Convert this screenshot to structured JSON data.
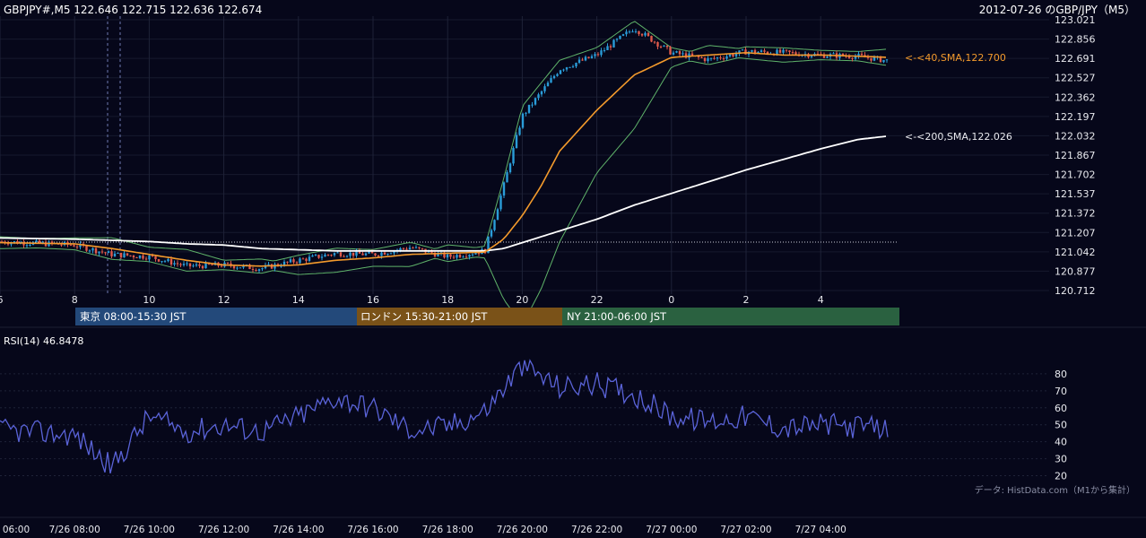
{
  "header": {
    "symbol_line": "GBPJPY#,M5 122.646 122.715 122.636 122.674",
    "right_title": "2012-07-26 のGBP/JPY（M5）"
  },
  "main_chart": {
    "type": "candlestick",
    "ymin": 120.712,
    "ymax": 123.021,
    "y_ticks": [
      "123.021",
      "122.856",
      "122.691",
      "122.527",
      "122.362",
      "122.197",
      "122.032",
      "121.867",
      "121.702",
      "121.537",
      "121.372",
      "121.207",
      "121.042",
      "120.877",
      "120.712"
    ],
    "x_ticks": [
      "6",
      "8",
      "10",
      "12",
      "14",
      "16",
      "18",
      "20",
      "22",
      "0",
      "2",
      "4"
    ],
    "sma40_label": "<-<40,SMA,122.700",
    "sma200_label": "<-<200,SMA,122.026",
    "colors": {
      "up": "#2a9cd8",
      "down": "#e05a4c",
      "sma40": "#f39a2c",
      "sma200": "#ffffff",
      "bollinger": "#5fb36a"
    }
  },
  "sessions": [
    {
      "label": "東京 08:00-15:30 JST",
      "color": "#23497a"
    },
    {
      "label": "ロンドン 15:30-21:00 JST",
      "color": "#7a5218"
    },
    {
      "label": "NY 21:00-06:00 JST",
      "color": "#2a6140"
    }
  ],
  "rsi_panel": {
    "label": "RSI(14) 46.8478",
    "y_ticks": [
      "80",
      "70",
      "60",
      "50",
      "40",
      "30",
      "20"
    ],
    "line_color": "#5a63d8",
    "source_note": "データ: HistData.com（M1から集計）"
  },
  "time_axis": [
    "06:00",
    "7/26 08:00",
    "7/26 10:00",
    "7/26 12:00",
    "7/26 14:00",
    "7/26 16:00",
    "7/26 18:00",
    "7/26 20:00",
    "7/26 22:00",
    "7/27 00:00",
    "7/27 02:00",
    "7/27 04:00"
  ],
  "chart_data": [
    {
      "type": "line",
      "title": "2012-07-26 のGBP/JPY（M5）",
      "x": [
        "06:00",
        "08:00",
        "09:00",
        "10:00",
        "11:00",
        "12:00",
        "13:00",
        "14:00",
        "15:00",
        "16:00",
        "17:00",
        "18:00",
        "19:00",
        "19:30",
        "20:00",
        "20:30",
        "21:00",
        "22:00",
        "23:00",
        "00:00",
        "01:00",
        "02:00",
        "03:00",
        "04:00",
        "05:00",
        "05:50"
      ],
      "series": [
        {
          "name": "price",
          "values": [
            121.13,
            121.1,
            121.02,
            121.0,
            120.92,
            120.93,
            120.9,
            120.97,
            121.03,
            121.02,
            121.08,
            121.0,
            121.05,
            121.6,
            122.2,
            122.4,
            122.6,
            122.72,
            122.95,
            122.74,
            122.68,
            122.75,
            122.74,
            122.72,
            122.71,
            122.67
          ]
        },
        {
          "name": "SMA40",
          "values": [
            121.12,
            121.11,
            121.07,
            121.02,
            120.97,
            120.93,
            120.92,
            120.93,
            120.97,
            120.99,
            121.02,
            121.03,
            121.04,
            121.15,
            121.35,
            121.6,
            121.9,
            122.25,
            122.55,
            122.7,
            122.72,
            122.74,
            122.72,
            122.72,
            122.71,
            122.7
          ]
        },
        {
          "name": "SMA200",
          "values": [
            121.16,
            121.15,
            121.14,
            121.13,
            121.11,
            121.1,
            121.07,
            121.06,
            121.05,
            121.05,
            121.05,
            121.05,
            121.05,
            121.07,
            121.12,
            121.17,
            121.22,
            121.32,
            121.44,
            121.54,
            121.64,
            121.74,
            121.83,
            121.92,
            122.0,
            122.03
          ]
        }
      ],
      "ylim": [
        120.712,
        123.021
      ]
    },
    {
      "type": "line",
      "title": "RSI(14) 46.8478",
      "x": [
        "06:00",
        "08:00",
        "09:00",
        "10:00",
        "11:00",
        "12:00",
        "13:00",
        "14:00",
        "15:00",
        "16:00",
        "17:00",
        "18:00",
        "19:00",
        "20:00",
        "21:00",
        "22:00",
        "23:00",
        "00:00",
        "01:00",
        "02:00",
        "03:00",
        "04:00",
        "05:00",
        "05:50"
      ],
      "series": [
        {
          "name": "RSI",
          "values": [
            47,
            44,
            25,
            55,
            46,
            50,
            46,
            55,
            66,
            60,
            47,
            49,
            58,
            85,
            72,
            74,
            68,
            55,
            52,
            55,
            48,
            50,
            49,
            47
          ]
        }
      ],
      "ylim": [
        15,
        90
      ]
    }
  ]
}
